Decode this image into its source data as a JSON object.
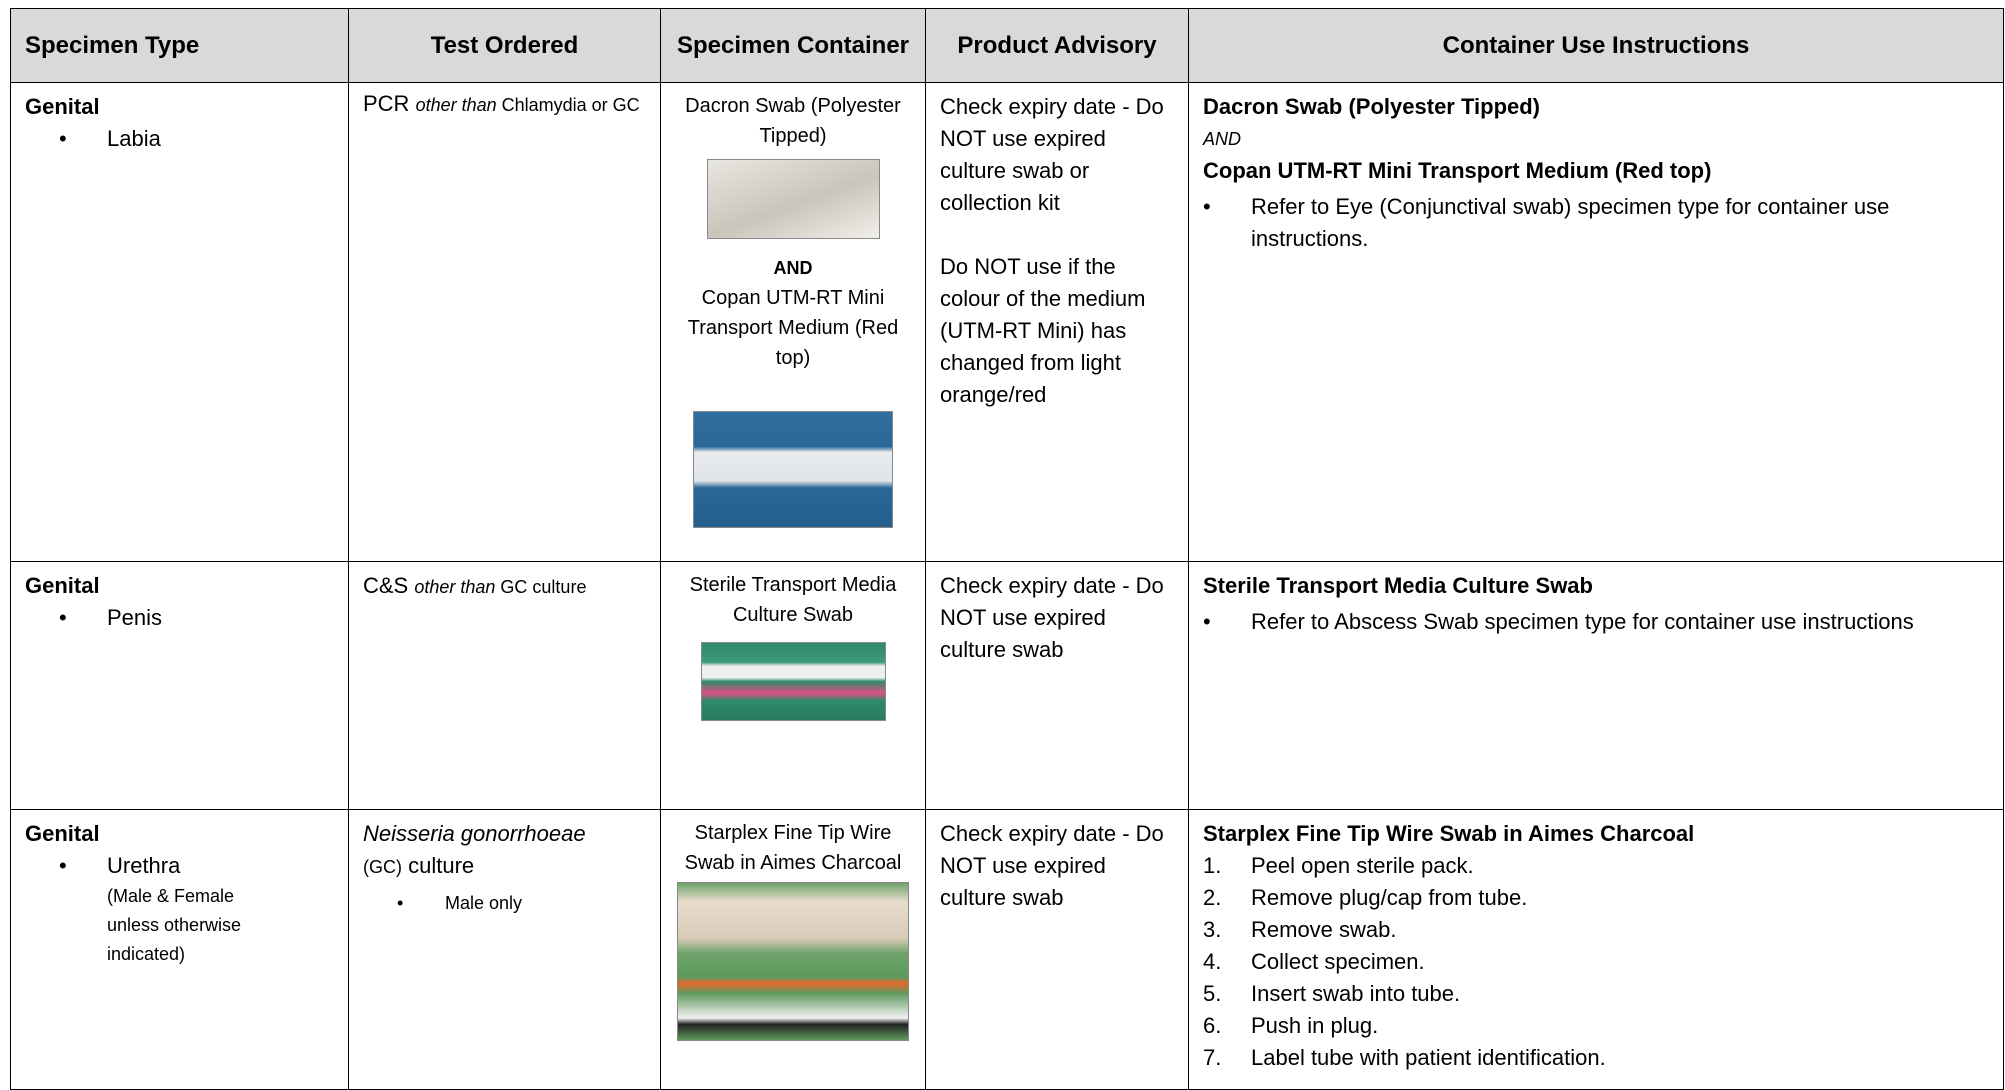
{
  "table": {
    "headers": [
      "Specimen Type",
      "Test Ordered",
      "Specimen Container",
      "Product Advisory",
      "Container Use Instructions"
    ],
    "rows": [
      {
        "specimen_type": {
          "category": "Genital",
          "items": [
            "Labia"
          ]
        },
        "test_ordered": {
          "main": "PCR ",
          "qualifier": "other than",
          "rest": " Chlamydia or GC"
        },
        "container": {
          "first": "Dacron Swab (Polyester Tipped)",
          "joiner": "AND",
          "second": "Copan UTM-RT Mini Transport Medium (Red top)"
        },
        "advisory": [
          "Check expiry date - Do NOT use expired culture swab or collection kit",
          "Do NOT use if the colour of the medium (UTM-RT Mini) has changed from light orange/red"
        ],
        "instructions": {
          "heading": "Dacron Swab (Polyester Tipped)",
          "joiner": "AND",
          "heading2": "Copan UTM-RT Mini Transport Medium (Red top)",
          "bullets": [
            "Refer to Eye (Conjunctival swab) specimen type for container use instructions."
          ]
        }
      },
      {
        "specimen_type": {
          "category": "Genital",
          "items": [
            "Penis"
          ]
        },
        "test_ordered": {
          "main": "C&S ",
          "qualifier": "other than",
          "rest": " GC culture"
        },
        "container": {
          "first": "Sterile Transport Media Culture Swab"
        },
        "advisory": [
          "Check expiry date - Do NOT use expired culture swab"
        ],
        "instructions": {
          "heading": "Sterile Transport Media Culture Swab",
          "bullets": [
            "Refer to Abscess Swab specimen type for container use instructions"
          ]
        }
      },
      {
        "specimen_type": {
          "category": "Genital",
          "items": [
            "Urethra"
          ],
          "note": "(Male & Female unless otherwise indicated)"
        },
        "test_ordered": {
          "organism": "Neisseria gonorrhoeae",
          "abbr": "(GC)",
          "rest": " culture",
          "bullets": [
            "Male only"
          ]
        },
        "container": {
          "first": "Starplex Fine Tip Wire Swab in Aimes Charcoal"
        },
        "advisory": [
          "Check expiry date - Do NOT use expired culture swab"
        ],
        "instructions": {
          "heading": "Starplex Fine Tip Wire Swab in Aimes Charcoal",
          "steps": [
            {
              "number": "1.",
              "text": "Peel open sterile pack."
            },
            {
              "number": "2.",
              "text": "Remove plug/cap from tube."
            },
            {
              "number": "3.",
              "text": "Remove swab."
            },
            {
              "number": "4.",
              "text": "Collect specimen."
            },
            {
              "number": "5.",
              "text": "Insert swab into tube."
            },
            {
              "number": "6.",
              "text": "Push in plug."
            },
            {
              "number": "7.",
              "text": "Label tube with patient identification."
            }
          ]
        }
      }
    ]
  }
}
